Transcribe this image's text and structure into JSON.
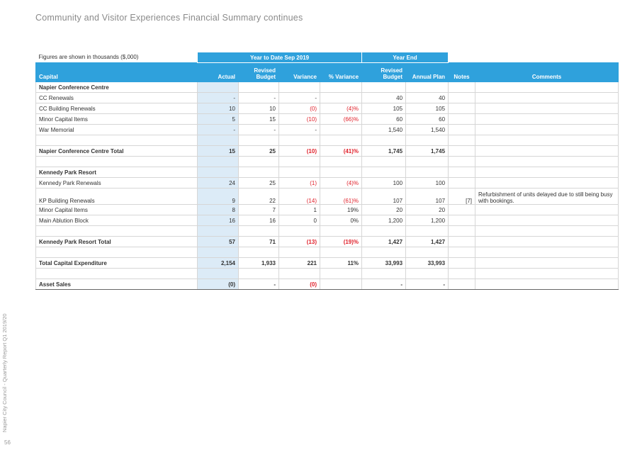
{
  "header": {
    "title": "Community and Visitor Experiences Financial Summary continues"
  },
  "sidebar": {
    "report": "Napier City Council - Quarterly Report Q1 2019/20",
    "page": "56"
  },
  "table": {
    "note": "Figures are shown in thousands ($,000)",
    "groups": [
      "Year to Date Sep 2019",
      "Year End"
    ],
    "columns": [
      "Capital",
      "Actual",
      "Revised Budget",
      "Variance",
      "% Variance",
      "Revised Budget",
      "Annual Plan",
      "Notes",
      "Comments"
    ],
    "rows": [
      [
        "Napier Conference Centre",
        null,
        null,
        null,
        null,
        null,
        null,
        null,
        null
      ],
      [
        "CC Renewals",
        "-",
        "-",
        "-",
        null,
        "40",
        "40",
        null,
        null
      ],
      [
        "CC Building Renewals",
        "10",
        "10",
        "(0)",
        "(4)%",
        "105",
        "105",
        null,
        null
      ],
      [
        "Minor Capital Items",
        "5",
        "15",
        "(10)",
        "(66)%",
        "60",
        "60",
        null,
        null
      ],
      [
        "War Memorial",
        "-",
        "-",
        "-",
        null,
        "1,540",
        "1,540",
        null,
        null
      ],
      null,
      [
        "Napier Conference Centre Total",
        "15",
        "25",
        "(10)",
        "(41)%",
        "1,745",
        "1,745",
        null,
        null
      ],
      null,
      [
        "Kennedy Park Resort",
        null,
        null,
        null,
        null,
        null,
        null,
        null,
        null
      ],
      [
        "Kennedy Park Renewals",
        "24",
        "25",
        "(1)",
        "(4)%",
        "100",
        "100",
        null,
        null
      ],
      [
        "KP Building Renewals",
        "9",
        "22",
        "(14)",
        "(61)%",
        "107",
        "107",
        "[7]",
        "Refurbishment of units delayed due to still being busy with bookings."
      ],
      [
        "Minor Capital Items",
        "8",
        "7",
        "1",
        "19%",
        "20",
        "20",
        null,
        null
      ],
      [
        "Main Ablution Block",
        "16",
        "16",
        "0",
        "0%",
        "1,200",
        "1,200",
        null,
        null
      ],
      null,
      [
        "Kennedy Park Resort Total",
        "57",
        "71",
        "(13)",
        "(19)%",
        "1,427",
        "1,427",
        null,
        null
      ],
      null,
      [
        "Total Capital Expenditure",
        "2,154",
        "1,933",
        "221",
        "11%",
        "33,993",
        "33,993",
        null,
        null
      ],
      null,
      [
        "Asset Sales",
        "(0)",
        "-",
        "(0)",
        null,
        "-",
        "-",
        null,
        null
      ]
    ]
  }
}
